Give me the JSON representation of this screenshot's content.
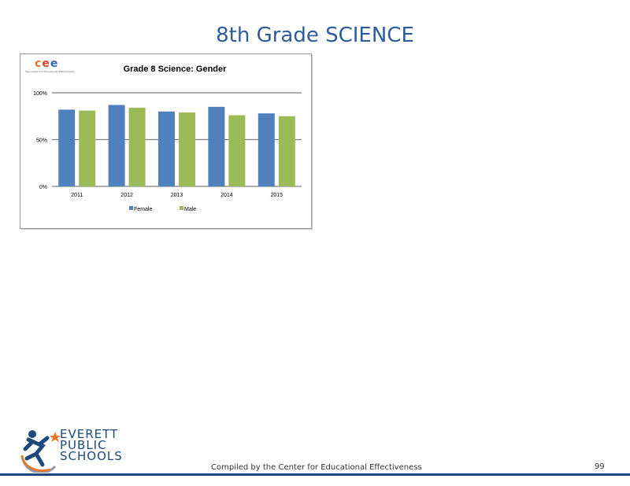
{
  "slide": {
    "title": "8th Grade SCIENCE",
    "footer": "Compiled  by the Center for Educational Effectiveness",
    "page_number": "99"
  },
  "chart_logo": {
    "letters": [
      "c",
      "e",
      "e"
    ],
    "subtitle": "The Center for Educational Effectiveness"
  },
  "district_logo": {
    "lines": [
      "EVERETT",
      "PUBLIC",
      "SCHOOLS"
    ]
  },
  "chart_data": {
    "type": "bar",
    "title": "Grade 8 Science: Gender",
    "xlabel": "",
    "ylabel": "",
    "categories": [
      "2011",
      "2012",
      "2013",
      "2014",
      "2015"
    ],
    "series": [
      {
        "name": "Female",
        "color": "#4f81bd",
        "values": [
          82,
          87,
          80,
          85,
          78
        ]
      },
      {
        "name": "Male",
        "color": "#9bbb59",
        "values": [
          81,
          84,
          79,
          76,
          75
        ]
      }
    ],
    "ylim": [
      0,
      100
    ],
    "yticks": [
      0,
      50,
      100
    ],
    "ytick_labels": [
      "0%",
      "50%",
      "100%"
    ],
    "grid": true,
    "legend_position": "bottom"
  }
}
